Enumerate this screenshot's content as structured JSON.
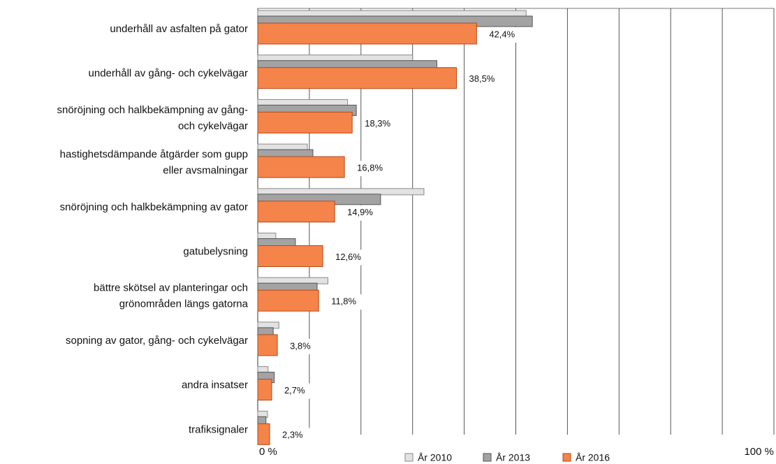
{
  "chart_data": {
    "type": "hbar",
    "categories": [
      "underhåll av asfalten på gator",
      "underhåll av gång- och cykelvägar",
      "snöröjning och halkbekämpning av gång-\noch cykelvägar",
      "hastighetsdämpande åtgärder som gupp\neller avsmalningar",
      "snöröjning och halkbekämpning av gator",
      "gatubelysning",
      "bättre skötsel av planteringar och\ngrönområden längs gatorna",
      "sopning av gator, gång- och cykelvägar",
      "andra insatser",
      "trafiksignaler"
    ],
    "series": [
      {
        "name": "År 2010",
        "color": "#e2e2e2",
        "stroke": "#8a8a8a",
        "values": [
          52.0,
          30.0,
          17.4,
          9.6,
          32.2,
          3.5,
          13.6,
          4.1,
          2.0,
          1.9
        ]
      },
      {
        "name": "År 2013",
        "color": "#a3a3a3",
        "stroke": "#555555",
        "values": [
          53.2,
          34.7,
          19.1,
          10.7,
          23.8,
          7.3,
          11.5,
          3.0,
          3.2,
          1.6
        ]
      },
      {
        "name": "År 2016",
        "color": "#f5844a",
        "stroke": "#b04a1a",
        "values": [
          42.4,
          38.5,
          18.3,
          16.8,
          14.9,
          12.6,
          11.8,
          3.8,
          2.7,
          2.3
        ],
        "value_labels": [
          "42,4%",
          "38,5%",
          "18,3%",
          "16,8%",
          "14,9%",
          "12,6%",
          "11,8%",
          "3,8%",
          "2,7%",
          "2,3%"
        ]
      }
    ],
    "xlim": [
      0,
      100
    ],
    "xticks": [
      {
        "value": 0,
        "label": "0 %"
      },
      {
        "value": 10,
        "label": null
      },
      {
        "value": 20,
        "label": null
      },
      {
        "value": 30,
        "label": null
      },
      {
        "value": 40,
        "label": null
      },
      {
        "value": 50,
        "label": null
      },
      {
        "value": 60,
        "label": null
      },
      {
        "value": 70,
        "label": null
      },
      {
        "value": 80,
        "label": null
      },
      {
        "value": 90,
        "label": null
      },
      {
        "value": 100,
        "label": "100 %"
      }
    ],
    "grid": true
  }
}
